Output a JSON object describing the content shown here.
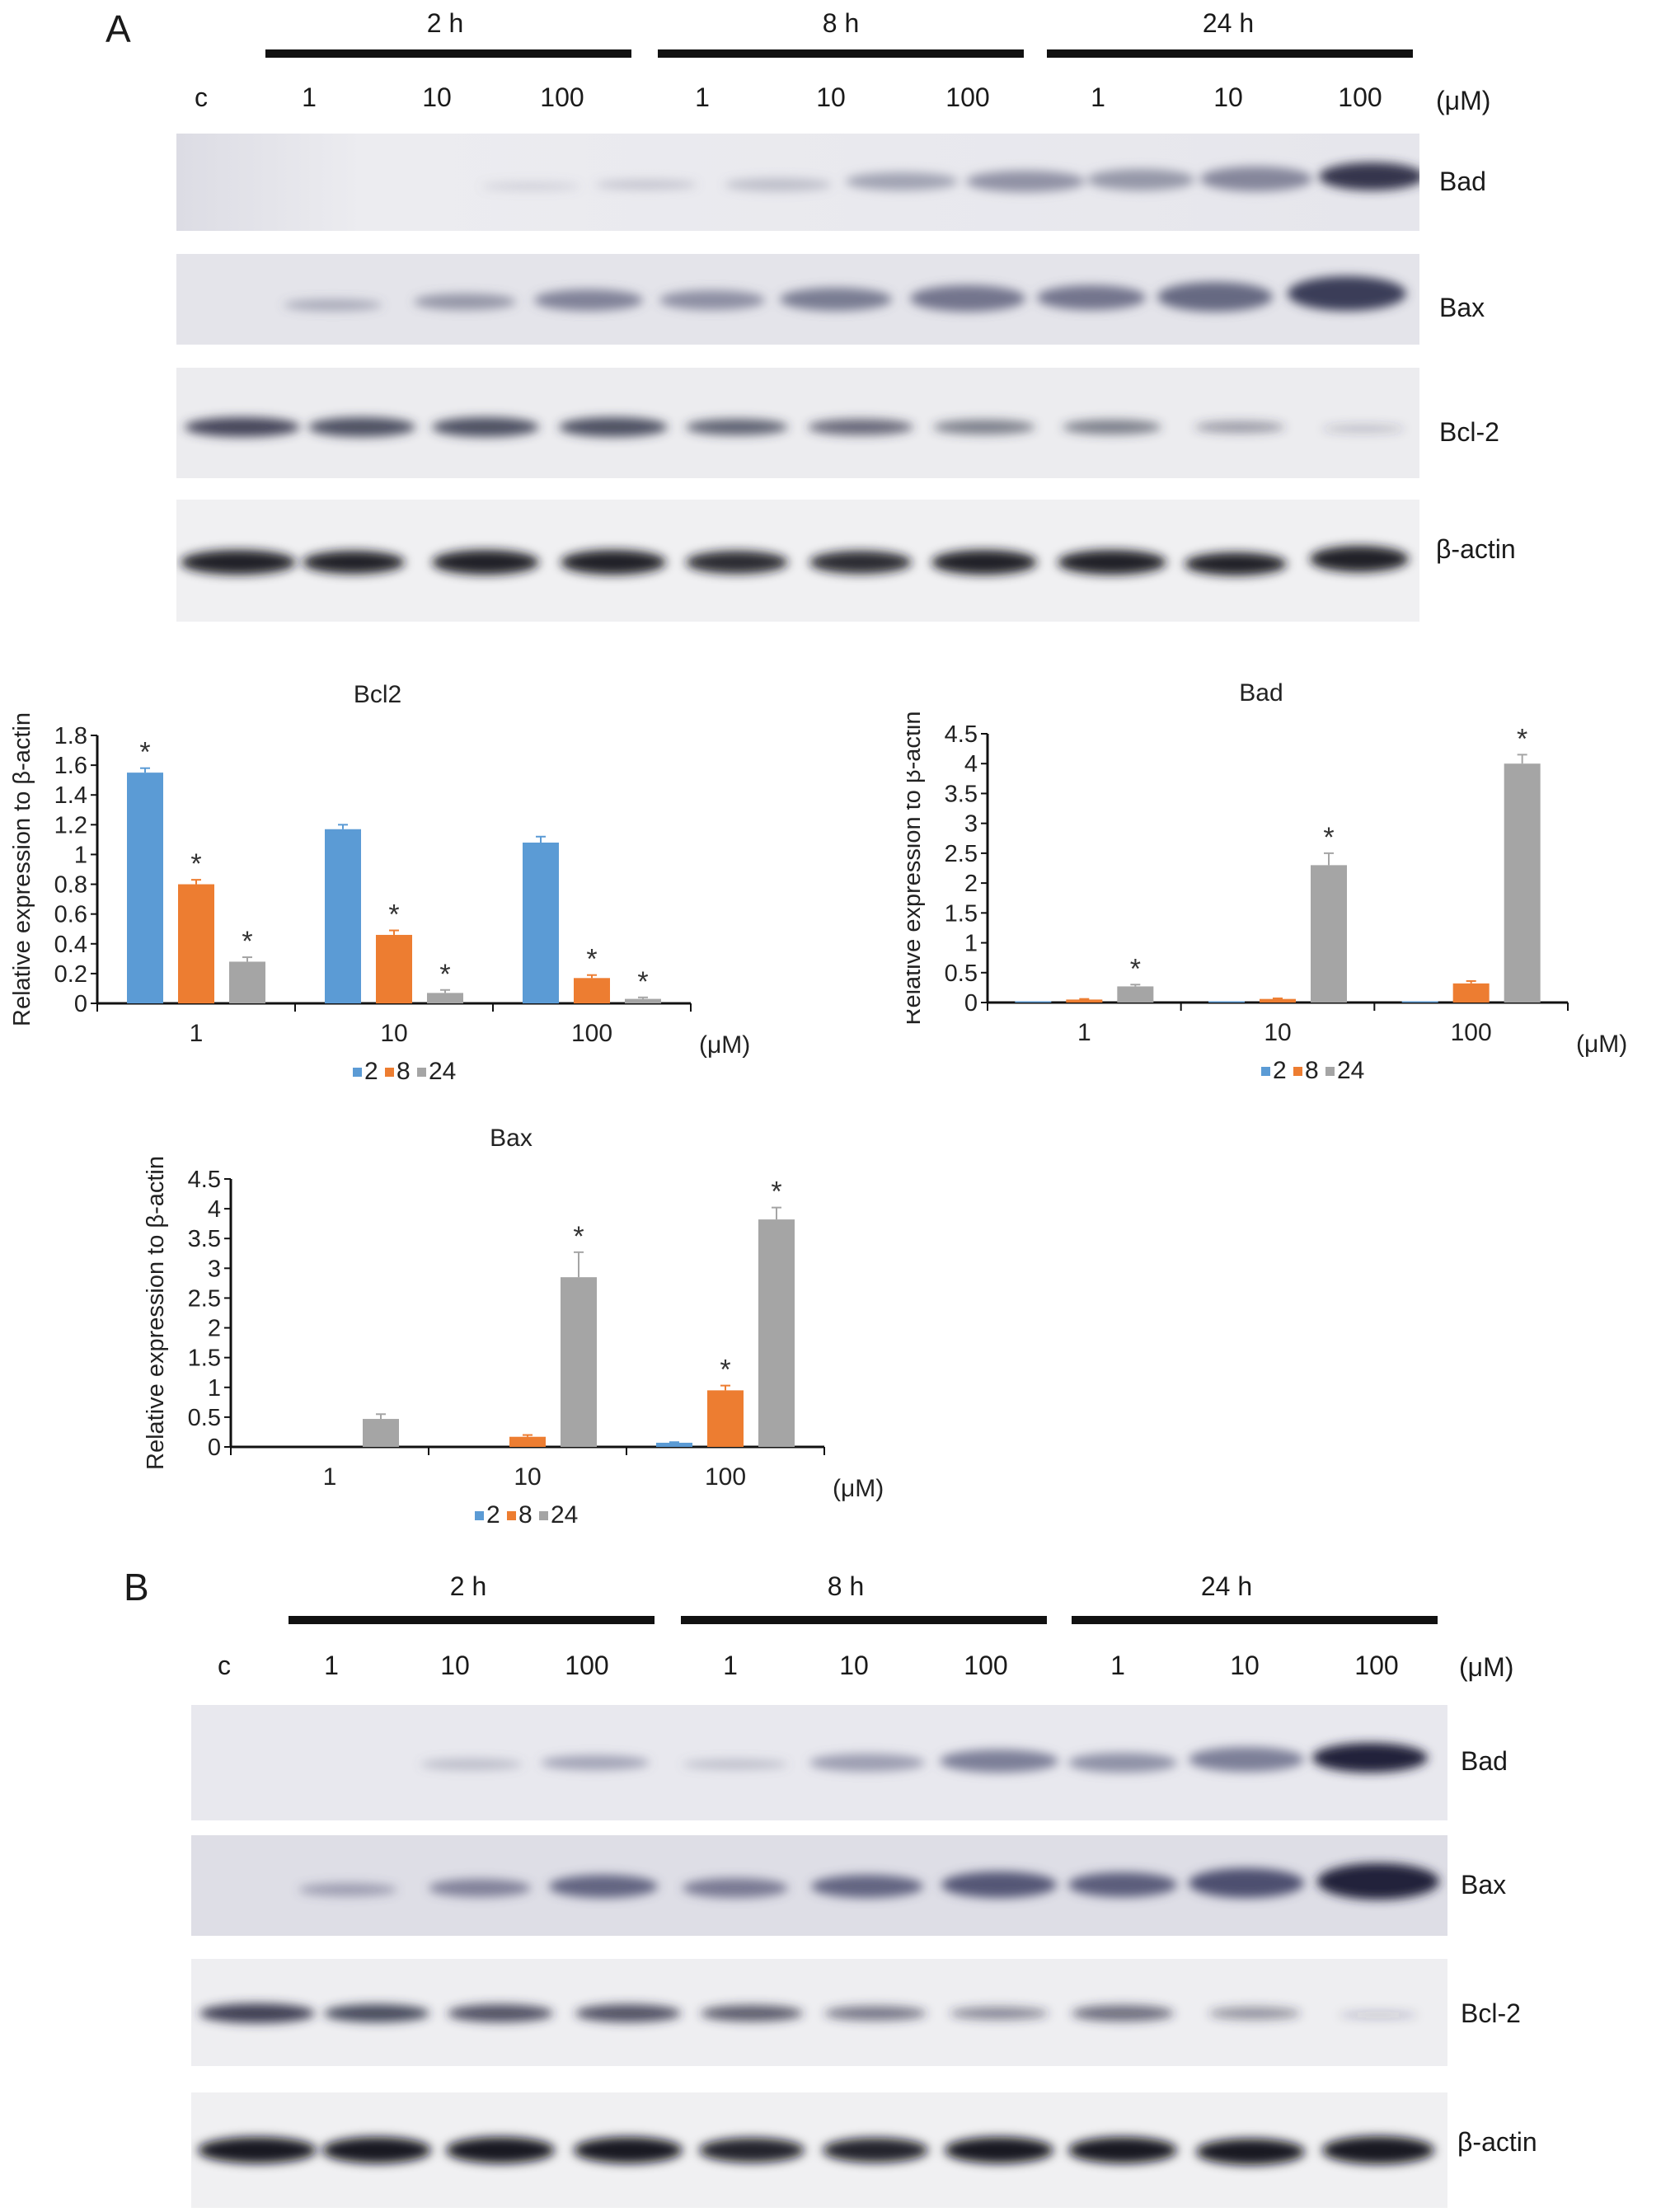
{
  "panels": {
    "A": {
      "label": "A",
      "time_groups": [
        "2 h",
        "8 h",
        "24 h"
      ],
      "lanes": [
        "c",
        "1",
        "10",
        "100",
        "1",
        "10",
        "100",
        "1",
        "10",
        "100"
      ],
      "unit": "(μM)",
      "proteins": [
        "Bad",
        "Bax",
        "Bcl-2",
        "β-actin"
      ]
    },
    "B": {
      "label": "B",
      "time_groups": [
        "2 h",
        "8 h",
        "24 h"
      ],
      "lanes": [
        "c",
        "1",
        "10",
        "100",
        "1",
        "10",
        "100",
        "1",
        "10",
        "100"
      ],
      "unit": "(μM)",
      "proteins": [
        "Bad",
        "Bax",
        "Bcl-2",
        "β-actin"
      ]
    }
  },
  "colors": {
    "s2": "#5b9bd5",
    "s8": "#ed7d31",
    "s24": "#a5a5a5"
  },
  "chart_data": [
    {
      "type": "bar",
      "title": "Bcl2",
      "ylabel": "Relative expression to β-actin",
      "xunit": "(μM)",
      "categories": [
        "1",
        "10",
        "100"
      ],
      "ylim": [
        0,
        1.8
      ],
      "yticks": [
        "0",
        "0.2",
        "0.4",
        "0.6",
        "0.8",
        "1",
        "1.2",
        "1.4",
        "1.6",
        "1.8"
      ],
      "series": [
        {
          "name": "2",
          "values": [
            1.55,
            1.17,
            1.08
          ],
          "errors": [
            0.03,
            0.03,
            0.04
          ],
          "significant": [
            true,
            false,
            false
          ]
        },
        {
          "name": "8",
          "values": [
            0.8,
            0.46,
            0.17
          ],
          "errors": [
            0.03,
            0.03,
            0.02
          ],
          "significant": [
            true,
            true,
            true
          ]
        },
        {
          "name": "24",
          "values": [
            0.28,
            0.07,
            0.03
          ],
          "errors": [
            0.03,
            0.02,
            0.01
          ],
          "significant": [
            true,
            true,
            true
          ]
        }
      ],
      "marker": "*"
    },
    {
      "type": "bar",
      "title": "Bad",
      "ylabel": "Relative expression to β-actin",
      "xunit": "(μM)",
      "categories": [
        "1",
        "10",
        "100"
      ],
      "ylim": [
        0,
        4.5
      ],
      "yticks": [
        "0",
        "0.5",
        "1",
        "1.5",
        "2",
        "2.5",
        "3",
        "3.5",
        "4",
        "4.5"
      ],
      "series": [
        {
          "name": "2",
          "values": [
            0.02,
            0.02,
            0.02
          ],
          "errors": [
            0,
            0,
            0
          ],
          "significant": [
            false,
            false,
            false
          ]
        },
        {
          "name": "8",
          "values": [
            0.05,
            0.06,
            0.32
          ],
          "errors": [
            0.01,
            0.01,
            0.04
          ],
          "significant": [
            false,
            false,
            false
          ]
        },
        {
          "name": "24",
          "values": [
            0.27,
            2.3,
            4.0
          ],
          "errors": [
            0.03,
            0.2,
            0.15
          ],
          "significant": [
            true,
            true,
            true
          ]
        }
      ],
      "marker": "*"
    },
    {
      "type": "bar",
      "title": "Bax",
      "ylabel": "Relative expression to β-actin",
      "xunit": "(μM)",
      "categories": [
        "1",
        "10",
        "100"
      ],
      "ylim": [
        0,
        4.5
      ],
      "yticks": [
        "0",
        "0.5",
        "1",
        "1.5",
        "2",
        "2.5",
        "3",
        "3.5",
        "4",
        "4.5"
      ],
      "series": [
        {
          "name": "2",
          "values": [
            0.0,
            0.0,
            0.07
          ],
          "errors": [
            0,
            0,
            0.01
          ],
          "significant": [
            false,
            false,
            false
          ]
        },
        {
          "name": "8",
          "values": [
            0.0,
            0.17,
            0.95
          ],
          "errors": [
            0,
            0.03,
            0.08
          ],
          "significant": [
            false,
            false,
            true
          ]
        },
        {
          "name": "24",
          "values": [
            0.47,
            2.85,
            3.82
          ],
          "errors": [
            0.08,
            0.42,
            0.2
          ],
          "significant": [
            false,
            true,
            true
          ]
        }
      ],
      "marker": "*"
    }
  ]
}
